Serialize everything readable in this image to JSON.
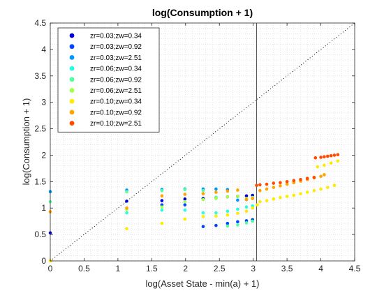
{
  "chart_data": {
    "type": "scatter",
    "title": "log(Consumption + 1)",
    "xlabel": "log(Asset State - min(a) + 1)",
    "ylabel": "log(Consumption + 1)",
    "xlim": [
      0,
      4.5
    ],
    "ylim": [
      0,
      4.5
    ],
    "xticks": [
      "0",
      "0.5",
      "1",
      "1.5",
      "2",
      "2.5",
      "3",
      "3.5",
      "4",
      "4.5"
    ],
    "yticks": [
      "0",
      "0.5",
      "1",
      "1.5",
      "2",
      "2.5",
      "3",
      "3.5",
      "4",
      "4.5"
    ],
    "grid": "minor dotted",
    "legend_position": "top-left",
    "reference_line": {
      "type": "diagonal",
      "style": "dotted",
      "from": [
        0,
        0
      ],
      "to": [
        4.5,
        4.5
      ]
    },
    "vertical_line": {
      "x": 3.05
    },
    "series": [
      {
        "name": "zr=0.03;zw=0.34",
        "color": "#0000d6",
        "points": [
          [
            0,
            0.53
          ],
          [
            1.13,
            1.13
          ],
          [
            1.65,
            1.14
          ],
          [
            1.99,
            1.17
          ],
          [
            2.26,
            1.18
          ],
          [
            2.45,
            1.2
          ],
          [
            2.62,
            1.21
          ],
          [
            2.77,
            1.22
          ],
          [
            2.9,
            1.23
          ],
          [
            2.99,
            1.24
          ]
        ]
      },
      {
        "name": "zr=0.03;zw=0.92",
        "color": "#0045ff",
        "points": [
          [
            1.65,
            1.06
          ],
          [
            1.99,
            1.06
          ],
          [
            2.26,
            0.65
          ],
          [
            2.45,
            0.67
          ],
          [
            2.62,
            0.71
          ],
          [
            2.77,
            0.74
          ],
          [
            2.9,
            0.76
          ],
          [
            2.99,
            0.78
          ]
        ]
      },
      {
        "name": "zr=0.03;zw=2.51",
        "color": "#0096ff",
        "points": [
          [
            0,
            1.31
          ],
          [
            1.13,
            1.34
          ],
          [
            1.65,
            1.35
          ],
          [
            1.99,
            1.36
          ],
          [
            2.26,
            1.36
          ],
          [
            2.45,
            1.36
          ],
          [
            2.62,
            1.35
          ],
          [
            2.77,
            1.15
          ],
          [
            2.9,
            1.16
          ],
          [
            2.99,
            1.19
          ]
        ]
      },
      {
        "name": "zr=0.06;zw=0.34",
        "color": "#23ffe0",
        "points": [
          [
            1.13,
            0.91
          ],
          [
            1.65,
            0.96
          ],
          [
            1.99,
            0.96
          ],
          [
            2.26,
            0.91
          ],
          [
            2.45,
            0.91
          ],
          [
            2.62,
            0.94
          ],
          [
            2.77,
            0.98
          ],
          [
            2.9,
            1.02
          ],
          [
            2.99,
            1.04
          ]
        ]
      },
      {
        "name": "zr=0.06;zw=0.92",
        "color": "#52ff9e",
        "points": [
          [
            0,
            1.12
          ],
          [
            1.13,
            1.31
          ],
          [
            1.65,
            1.33
          ],
          [
            1.99,
            1.35
          ],
          [
            2.26,
            1.33
          ],
          [
            2.45,
            1.2
          ],
          [
            2.62,
            0.66
          ],
          [
            2.77,
            0.68
          ],
          [
            2.9,
            0.72
          ],
          [
            2.99,
            0.75
          ]
        ]
      },
      {
        "name": "zr=0.06;zw=2.51",
        "color": "#a3ff4a",
        "points": [
          [
            1.13,
            0.97
          ],
          [
            1.65,
            1.02
          ],
          [
            1.99,
            1.12
          ],
          [
            2.26,
            1.16
          ],
          [
            2.45,
            1.18
          ],
          [
            2.62,
            1.21
          ],
          [
            2.77,
            1.22
          ],
          [
            2.9,
            1.18
          ],
          [
            2.99,
            1.2
          ]
        ]
      },
      {
        "name": "zr=0.10;zw=0.34",
        "color": "#ffeb00",
        "points": [
          [
            0,
            0.0
          ],
          [
            1.13,
            0.61
          ],
          [
            1.65,
            0.71
          ],
          [
            1.99,
            0.79
          ],
          [
            2.26,
            0.84
          ],
          [
            2.45,
            0.85
          ],
          [
            2.62,
            0.87
          ],
          [
            2.77,
            0.9
          ],
          [
            2.9,
            0.94
          ],
          [
            2.99,
            1.0
          ],
          [
            3.06,
            1.06
          ],
          [
            3.1,
            1.12
          ],
          [
            3.2,
            1.14
          ],
          [
            3.3,
            1.17
          ],
          [
            3.4,
            1.2
          ],
          [
            3.5,
            1.22
          ],
          [
            3.6,
            1.24
          ],
          [
            3.7,
            1.27
          ],
          [
            3.8,
            1.3
          ],
          [
            3.9,
            1.33
          ],
          [
            4.0,
            1.36
          ],
          [
            4.1,
            1.39
          ],
          [
            4.2,
            1.43
          ],
          [
            3.95,
            1.78
          ],
          [
            4.05,
            1.81
          ],
          [
            4.15,
            1.85
          ],
          [
            4.25,
            1.89
          ]
        ]
      },
      {
        "name": "zr=0.10;zw=0.92",
        "color": "#ffa300",
        "points": [
          [
            0,
            0.93
          ],
          [
            1.13,
            1.0
          ],
          [
            1.65,
            1.23
          ],
          [
            1.99,
            1.26
          ],
          [
            2.26,
            1.27
          ],
          [
            2.45,
            1.3
          ],
          [
            2.62,
            1.32
          ],
          [
            2.77,
            1.34
          ],
          [
            2.9,
            1.16
          ],
          [
            2.99,
            1.18
          ],
          [
            3.1,
            1.33
          ],
          [
            3.2,
            1.36
          ],
          [
            3.3,
            1.39
          ],
          [
            3.4,
            1.42
          ],
          [
            3.5,
            1.45
          ],
          [
            3.6,
            1.48
          ],
          [
            3.7,
            1.51
          ],
          [
            3.8,
            1.54
          ],
          [
            3.9,
            1.57
          ],
          [
            4.0,
            1.6
          ],
          [
            4.05,
            1.63
          ]
        ]
      },
      {
        "name": "zr=0.10;zw=2.51",
        "color": "#ff4a00",
        "points": [
          [
            3.05,
            1.43
          ],
          [
            3.1,
            1.44
          ],
          [
            3.2,
            1.45
          ],
          [
            3.3,
            1.47
          ],
          [
            3.4,
            1.48
          ],
          [
            3.5,
            1.5
          ],
          [
            3.6,
            1.52
          ],
          [
            3.7,
            1.54
          ],
          [
            3.8,
            1.56
          ],
          [
            3.9,
            1.58
          ],
          [
            3.92,
            1.95
          ],
          [
            4.0,
            1.96
          ],
          [
            4.05,
            1.97
          ],
          [
            4.1,
            1.98
          ],
          [
            4.15,
            1.99
          ],
          [
            4.2,
            2.0
          ],
          [
            4.25,
            2.01
          ]
        ]
      }
    ]
  }
}
